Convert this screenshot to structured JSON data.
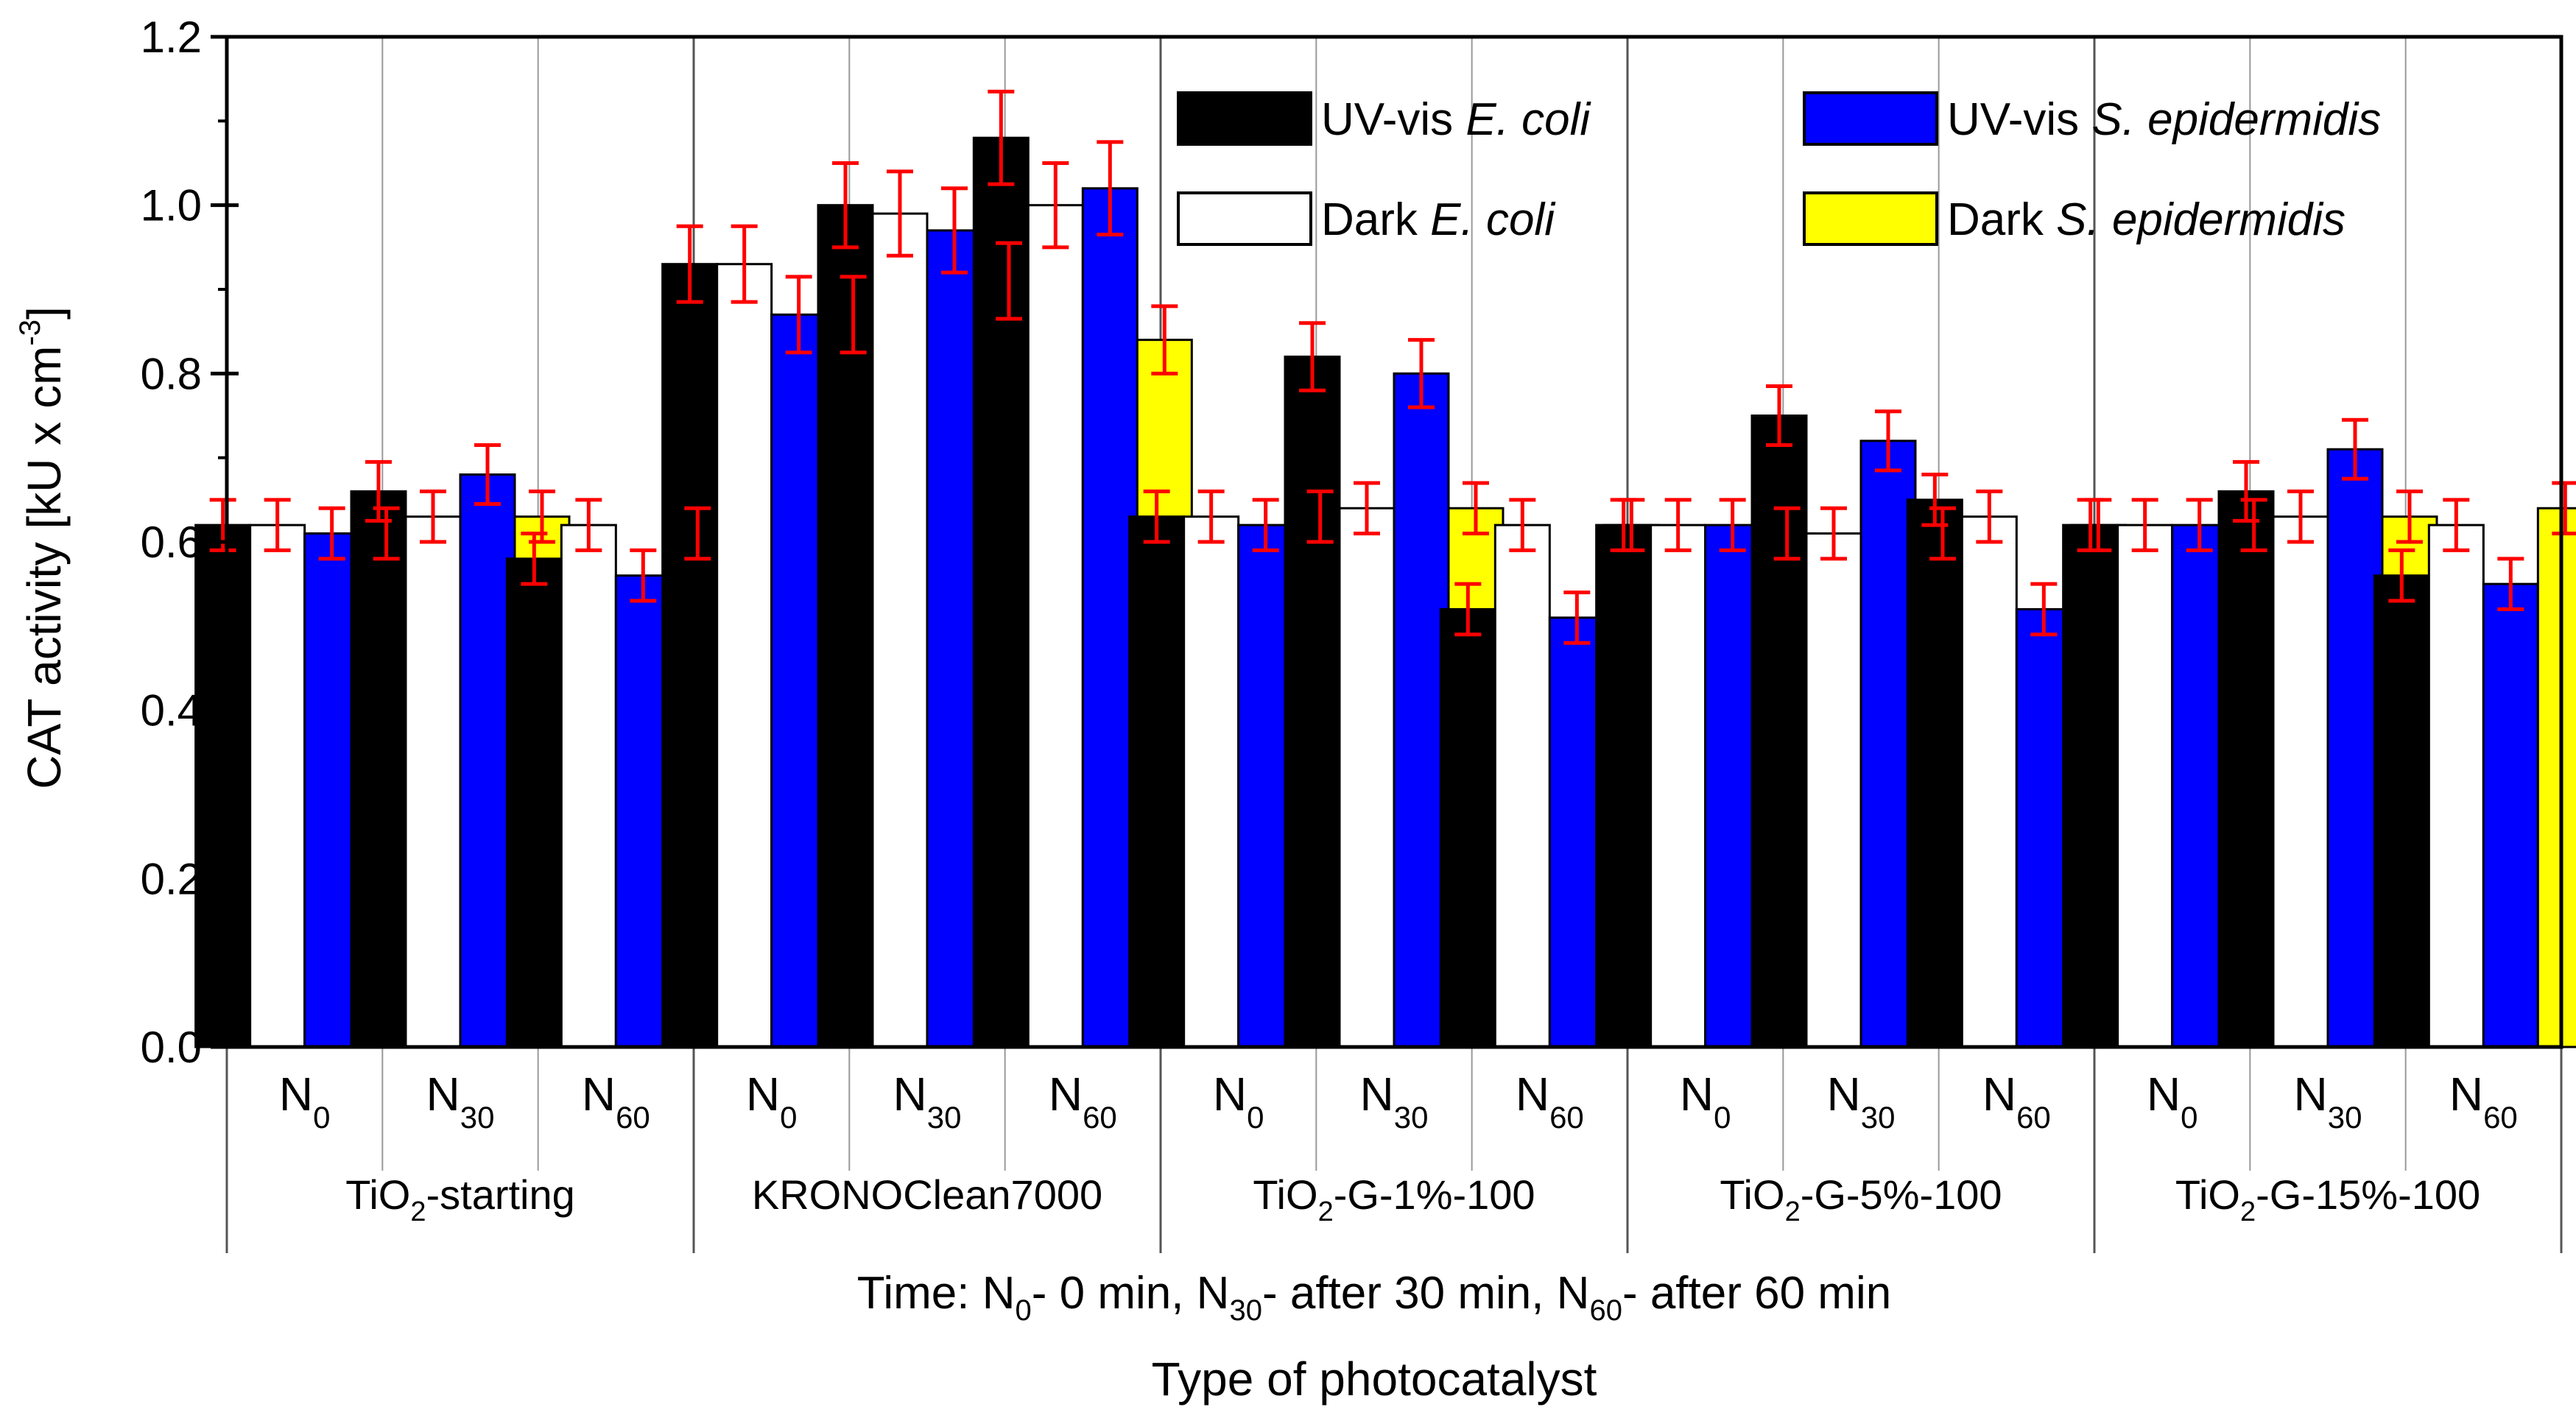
{
  "chart_data": {
    "type": "bar",
    "ylabel": "CAT activity [kU x cm",
    "ylabel_sup": "-3",
    "ylabel_close": "]",
    "ylim": [
      0.0,
      1.2
    ],
    "yticks": [
      "0.0",
      "0.2",
      "0.4",
      "0.6",
      "0.8",
      "1.0",
      "1.2"
    ],
    "time_note": {
      "p1": "Time: N",
      "s1": "0",
      "p2": "- 0 min, N",
      "s2": "30",
      "p3": "- after 30 min, N",
      "s3": "60",
      "p4": "- after 60 min"
    },
    "xlabel": "Type of photocatalyst",
    "subcategory_base": "N",
    "groups": [
      {
        "pre": "TiO",
        "sub": "2",
        "post": "-starting",
        "name": "TiO2-starting",
        "subcategories": [
          "0",
          "30",
          "60"
        ]
      },
      {
        "pre": "KRONOClean7000",
        "sub": "",
        "post": "",
        "name": "KRONOClean7000",
        "subcategories": [
          "0",
          "30",
          "60"
        ]
      },
      {
        "pre": "TiO",
        "sub": "2",
        "post": "-G-1%-100",
        "name": "TiO2-G-1%-100",
        "subcategories": [
          "0",
          "30",
          "60"
        ]
      },
      {
        "pre": "TiO",
        "sub": "2",
        "post": "-G-5%-100",
        "name": "TiO2-G-5%-100",
        "subcategories": [
          "0",
          "30",
          "60"
        ]
      },
      {
        "pre": "TiO",
        "sub": "2",
        "post": "-G-15%-100",
        "name": "TiO2-G-15%-100",
        "subcategories": [
          "0",
          "30",
          "60"
        ]
      }
    ],
    "series": [
      {
        "name": "UV-vis E. coli",
        "prefix": "UV-vis ",
        "organism": "E. coli",
        "color": "#000000",
        "values": [
          0.62,
          0.66,
          0.58,
          0.93,
          1.0,
          1.08,
          0.63,
          0.82,
          0.52,
          0.62,
          0.75,
          0.65,
          0.62,
          0.66,
          0.56
        ],
        "errors": [
          0.03,
          0.035,
          0.03,
          0.045,
          0.05,
          0.055,
          0.03,
          0.04,
          0.03,
          0.03,
          0.035,
          0.03,
          0.03,
          0.035,
          0.03
        ]
      },
      {
        "name": "Dark E. coli",
        "prefix": "Dark ",
        "organism": "E. coli",
        "color": "#ffffff",
        "values": [
          0.62,
          0.63,
          0.62,
          0.93,
          0.99,
          1.0,
          0.63,
          0.64,
          0.62,
          0.62,
          0.61,
          0.63,
          0.62,
          0.63,
          0.62
        ],
        "errors": [
          0.03,
          0.03,
          0.03,
          0.045,
          0.05,
          0.05,
          0.03,
          0.03,
          0.03,
          0.03,
          0.03,
          0.03,
          0.03,
          0.03,
          0.03
        ]
      },
      {
        "name": "UV-vis S. epidermidis",
        "prefix": "UV-vis ",
        "organism": "S. epidermidis",
        "color": "#0000ff",
        "values": [
          0.61,
          0.68,
          0.56,
          0.87,
          0.97,
          1.02,
          0.62,
          0.8,
          0.51,
          0.62,
          0.72,
          0.52,
          0.62,
          0.71,
          0.55
        ],
        "errors": [
          0.03,
          0.035,
          0.03,
          0.045,
          0.05,
          0.055,
          0.03,
          0.04,
          0.03,
          0.03,
          0.035,
          0.03,
          0.03,
          0.035,
          0.03
        ]
      },
      {
        "name": "Dark S. epidermidis",
        "prefix": "Dark ",
        "organism": "S. epidermidis",
        "color": "#ffff00",
        "values": [
          0.61,
          0.63,
          0.61,
          0.87,
          0.91,
          0.84,
          0.63,
          0.64,
          0.62,
          0.61,
          0.61,
          0.62,
          0.62,
          0.63,
          0.64
        ],
        "errors": [
          0.03,
          0.03,
          0.03,
          0.045,
          0.045,
          0.04,
          0.03,
          0.03,
          0.03,
          0.03,
          0.03,
          0.03,
          0.03,
          0.03,
          0.03
        ]
      }
    ],
    "error_bar_color": "#ff0000"
  }
}
